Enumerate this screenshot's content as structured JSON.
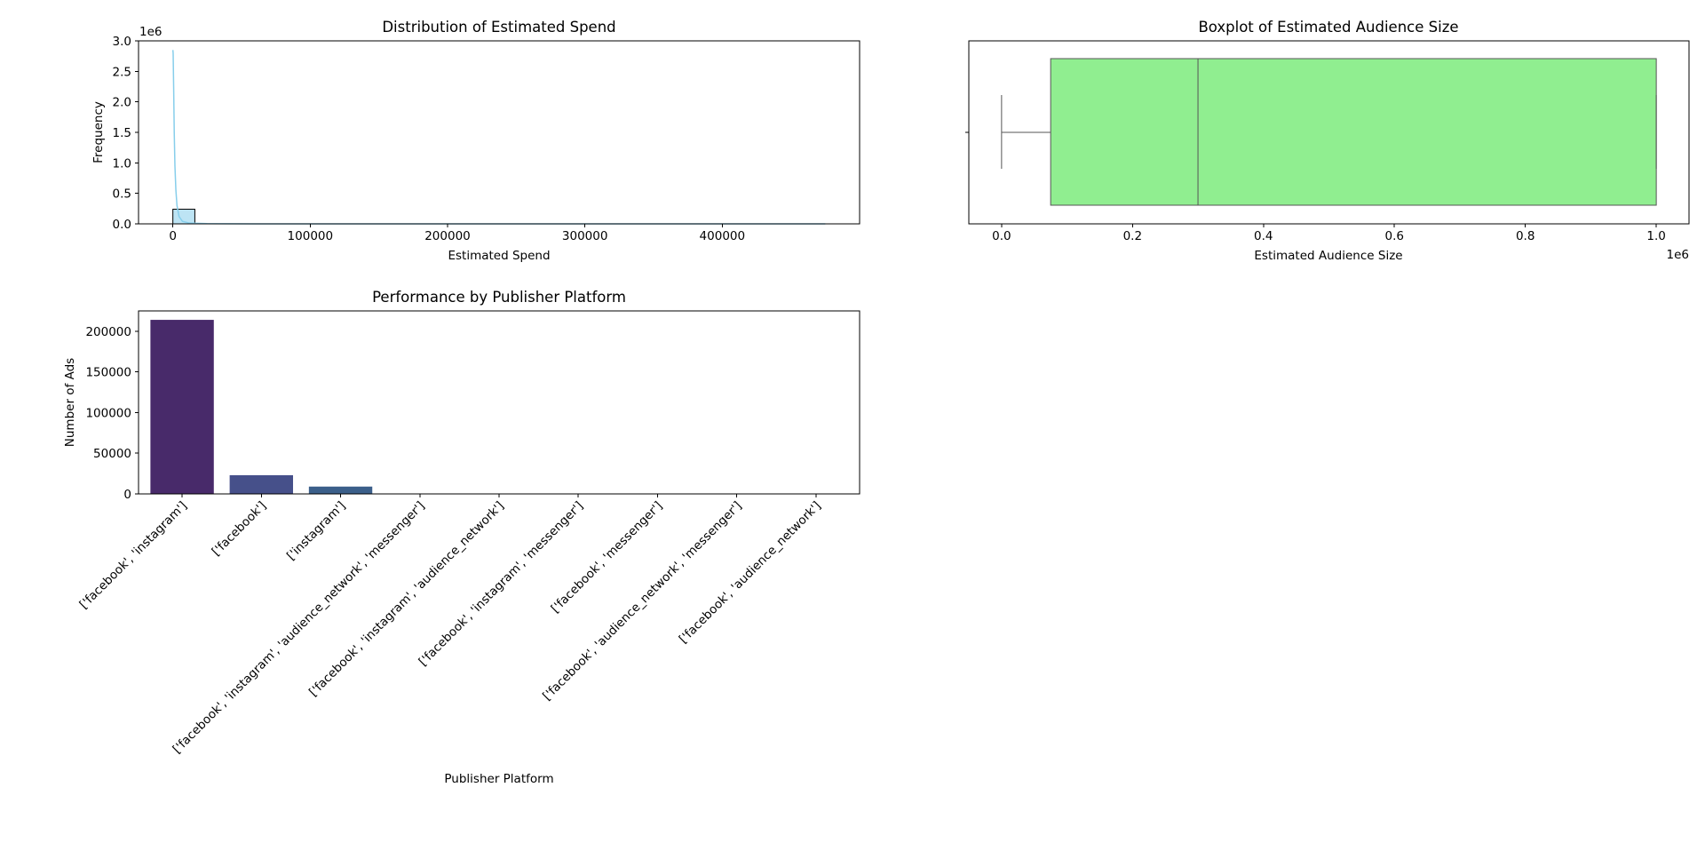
{
  "chart_data": [
    {
      "type": "bar",
      "subtype": "histogram-with-kde",
      "title": "Distribution of Estimated Spend",
      "xlabel": "Estimated Spend",
      "ylabel": "Frequency",
      "y_offset_text": "1e6",
      "xlim": [
        -25000,
        500000
      ],
      "ylim": [
        0,
        3000000
      ],
      "xticks": [
        0,
        100000,
        200000,
        300000,
        400000
      ],
      "xtick_labels": [
        "0",
        "100000",
        "200000",
        "300000",
        "400000"
      ],
      "yticks": [
        0,
        500000,
        1000000,
        1500000,
        2000000,
        2500000,
        3000000
      ],
      "ytick_labels": [
        "0.0",
        "0.5",
        "1.0",
        "1.5",
        "2.0",
        "2.5",
        "3.0"
      ],
      "bins": [
        {
          "x0": 0,
          "x1": 16000,
          "count": 240000
        },
        {
          "x0": 16000,
          "x1": 32000,
          "count": 600
        },
        {
          "x0": 32000,
          "x1": 48000,
          "count": 150
        },
        {
          "x0": 48000,
          "x1": 64000,
          "count": 60
        }
      ],
      "kde": {
        "x": [
          0,
          200,
          600,
          1000,
          1500,
          2200,
          3000,
          4500,
          7000,
          12000,
          25000,
          60000,
          120000,
          200000,
          300000,
          400000,
          475000
        ],
        "y": [
          2850000,
          2800000,
          2200000,
          1500000,
          950000,
          550000,
          300000,
          120000,
          40000,
          12000,
          3000,
          500,
          100,
          20,
          5,
          2,
          0
        ]
      },
      "bar_color": "#87ceeb",
      "line_color": "#87ceeb",
      "grid": false
    },
    {
      "type": "box",
      "title": "Boxplot of Estimated Audience Size",
      "xlabel": "Estimated Audience Size",
      "x_offset_text": "1e6",
      "xlim": [
        -50000,
        1050000
      ],
      "xticks": [
        0,
        200000,
        400000,
        600000,
        800000,
        1000000
      ],
      "xtick_labels": [
        "0.0",
        "0.2",
        "0.4",
        "0.6",
        "0.8",
        "1.0"
      ],
      "box": {
        "whisker_low": 0,
        "q1": 75000,
        "median": 300000,
        "q3": 1000000,
        "whisker_high": 1000000
      },
      "box_color": "#90ee90",
      "grid": false
    },
    {
      "type": "bar",
      "title": "Performance by Publisher Platform",
      "xlabel": "Publisher Platform",
      "ylabel": "Number of Ads",
      "ylim": [
        0,
        225000
      ],
      "yticks": [
        0,
        50000,
        100000,
        150000,
        200000
      ],
      "ytick_labels": [
        "0",
        "50000",
        "100000",
        "150000",
        "200000"
      ],
      "categories": [
        "['facebook', 'instagram']",
        "['facebook']",
        "['instagram']",
        "['facebook', 'instagram', 'audience_network', 'messenger']",
        "['facebook', 'instagram', 'audience_network']",
        "['facebook', 'instagram', 'messenger']",
        "['facebook', 'messenger']",
        "['facebook', 'audience_network', 'messenger']",
        "['facebook', 'audience_network']"
      ],
      "values": [
        214000,
        23000,
        9000,
        150,
        100,
        80,
        60,
        30,
        20
      ],
      "colors": [
        "#482a6a",
        "#46508a",
        "#3b5f8a",
        "#31688e",
        "#2a788e",
        "#21918c",
        "#22a884",
        "#44bf70",
        "#7ad151"
      ],
      "grid": false
    }
  ]
}
